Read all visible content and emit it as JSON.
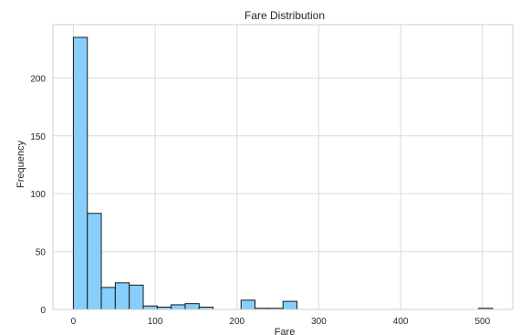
{
  "chart_data": {
    "type": "bar",
    "title": "Fare Distribution",
    "xlabel": "Fare",
    "ylabel": "Frequency",
    "xlim": [
      -25,
      537
    ],
    "ylim": [
      0,
      246
    ],
    "xticks": [
      0,
      100,
      200,
      300,
      400,
      500
    ],
    "yticks": [
      0,
      50,
      100,
      150,
      200
    ],
    "grid": true,
    "bar_color": "#87cefa",
    "edge_color": "#1a1a1a",
    "bin_edges": [
      0,
      17.08,
      34.16,
      51.25,
      68.33,
      85.41,
      102.49,
      119.57,
      136.66,
      153.74,
      170.82,
      187.9,
      204.98,
      222.07,
      239.15,
      256.23,
      273.31,
      290.39,
      307.48,
      324.56,
      341.64,
      358.72,
      375.8,
      392.89,
      409.97,
      427.05,
      444.13,
      461.21,
      478.3,
      495.38,
      512.46
    ],
    "values": [
      235,
      83,
      19,
      23,
      21,
      3,
      2,
      4,
      5,
      2,
      0,
      0,
      8,
      1,
      1,
      7,
      0,
      0,
      0,
      0,
      0,
      0,
      0,
      0,
      0,
      0,
      0,
      0,
      0,
      1
    ]
  }
}
